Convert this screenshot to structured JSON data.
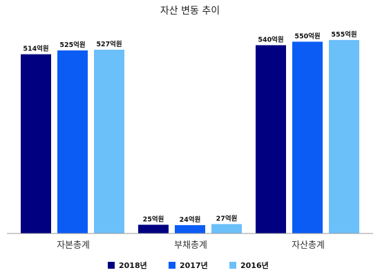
{
  "chart_data": {
    "type": "bar",
    "title": "자산 변동 추이",
    "categories": [
      "자본총계",
      "부채총계",
      "자산총계"
    ],
    "series": [
      {
        "name": "2018년",
        "color": "#000080",
        "values": [
          514,
          25,
          540
        ],
        "labels": [
          "514억원",
          "25억원",
          "540억원"
        ]
      },
      {
        "name": "2017년",
        "color": "#0a5cf5",
        "values": [
          525,
          24,
          550
        ],
        "labels": [
          "525억원",
          "24억원",
          "550억원"
        ]
      },
      {
        "name": "2016년",
        "color": "#6cc0fa",
        "values": [
          527,
          27,
          555
        ],
        "labels": [
          "527억원",
          "27억원",
          "555억원"
        ]
      }
    ],
    "ylim": [
      0,
      630
    ],
    "grid": false,
    "legend_position": "bottom"
  }
}
